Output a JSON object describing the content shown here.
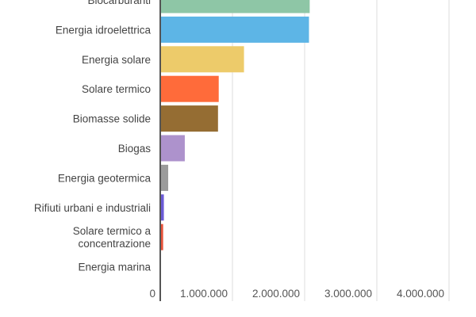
{
  "chart_data": {
    "type": "bar",
    "orientation": "horizontal",
    "categories": [
      [
        "Biocarburanti"
      ],
      [
        "Energia idroelettrica"
      ],
      [
        "Energia solare"
      ],
      [
        "Solare termico"
      ],
      [
        "Biomasse solide"
      ],
      [
        "Biogas"
      ],
      [
        "Energia geotermica"
      ],
      [
        "Rifiuti urbani e industriali"
      ],
      [
        "Solare termico a",
        "concentrazione"
      ],
      [
        "Energia marina"
      ]
    ],
    "values": [
      2070000,
      2060000,
      1160000,
      810000,
      800000,
      340000,
      110000,
      50000,
      40000,
      0
    ],
    "colors": [
      "#8ec6a6",
      "#5db5e6",
      "#edcb6a",
      "#ff6b3a",
      "#956d33",
      "#ad92cc",
      "#9b9b9b",
      "#6b5bd6",
      "#e8533a",
      "#cccccc"
    ],
    "xticks": [
      {
        "value": 0,
        "label": "0"
      },
      {
        "value": 1000000,
        "label": "1.000.000"
      },
      {
        "value": 2000000,
        "label": "2.000.000"
      },
      {
        "value": 3000000,
        "label": "3.000.000"
      },
      {
        "value": 4000000,
        "label": "4.000.000"
      }
    ],
    "xlim": [
      0,
      4000000
    ],
    "title": "",
    "xlabel": "",
    "ylabel": "",
    "grid": true,
    "gridline_color": "#dddddd"
  }
}
